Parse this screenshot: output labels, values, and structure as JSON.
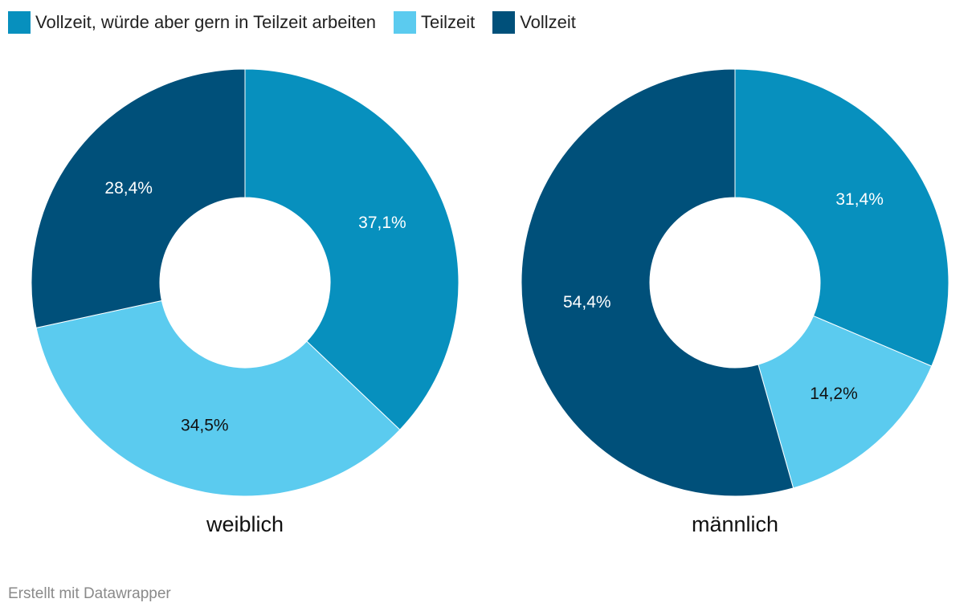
{
  "legend": [
    {
      "label": "Vollzeit, würde aber gern in Teilzeit arbeiten",
      "color": "#0790be"
    },
    {
      "label": "Teilzeit",
      "color": "#5bcbef"
    },
    {
      "label": "Vollzeit",
      "color": "#00507a"
    }
  ],
  "chart_data": [
    {
      "type": "pie",
      "title": "weiblich",
      "slices": [
        {
          "category": "Vollzeit, würde aber gern in Teilzeit arbeiten",
          "value": 37.1,
          "label": "37,1%",
          "color": "#0790be",
          "label_color": "#ffffff"
        },
        {
          "category": "Teilzeit",
          "value": 34.5,
          "label": "34,5%",
          "color": "#5bcbef",
          "label_color": "#111111"
        },
        {
          "category": "Vollzeit",
          "value": 28.4,
          "label": "28,4%",
          "color": "#00507a",
          "label_color": "#ffffff"
        }
      ]
    },
    {
      "type": "pie",
      "title": "männlich",
      "slices": [
        {
          "category": "Vollzeit, würde aber gern in Teilzeit arbeiten",
          "value": 31.4,
          "label": "31,4%",
          "color": "#0790be",
          "label_color": "#ffffff"
        },
        {
          "category": "Teilzeit",
          "value": 14.2,
          "label": "14,2%",
          "color": "#5bcbef",
          "label_color": "#111111"
        },
        {
          "category": "Vollzeit",
          "value": 54.4,
          "label": "54,4%",
          "color": "#00507a",
          "label_color": "#ffffff"
        }
      ]
    }
  ],
  "footer": "Erstellt mit Datawrapper"
}
